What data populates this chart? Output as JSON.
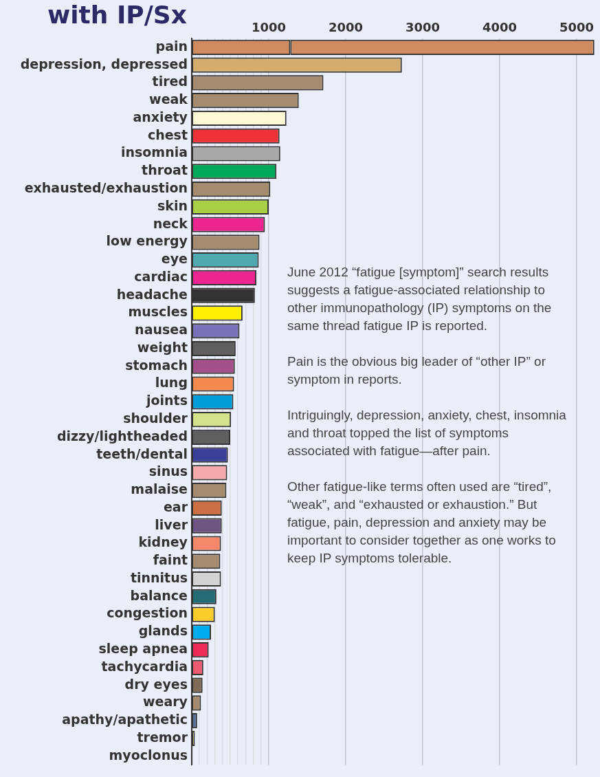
{
  "chart_data": {
    "type": "bar",
    "orientation": "horizontal",
    "stacked": true,
    "title": "with IP/Sx",
    "categories": [
      "pain",
      "depression, depressed",
      "tired",
      "weak",
      "anxiety",
      "chest",
      "insomnia",
      "throat",
      "exhausted/exhaustion",
      "skin",
      "neck",
      "low energy",
      "eye",
      "cardiac",
      "headache",
      "muscles",
      "nausea",
      "weight",
      "stomach",
      "lung",
      "joints",
      "shoulder",
      "dizzy/lightheaded",
      "teeth/dental",
      "sinus",
      "malaise",
      "ear",
      "liver",
      "kidney",
      "faint",
      "tinnitus",
      "balance",
      "congestion",
      "glands",
      "sleep apnea",
      "tachycardia",
      "dry eyes",
      "weary",
      "apathy/apathetic",
      "tremor",
      "myoclonus"
    ],
    "series": [
      {
        "colors": [
          "#d08c60",
          "#d4ac6e",
          "#a68c6e",
          "#a68c6e",
          "#fdf8d4",
          "#ee3338",
          "#a7a9ac",
          "#00a859",
          "#a68c6e",
          "#a8cf45",
          "#ec2590",
          "#a68c6e",
          "#50a8b0",
          "#ec2590",
          "#333135",
          "#fef200",
          "#7873b8",
          "#5f5f5f",
          "#a24f8a",
          "#f58a4f",
          "#009ddb",
          "#d2e38b",
          "#5f5f5f",
          "#3b3f97",
          "#f6a9ab",
          "#a68c6e",
          "#cc6f44",
          "#6f5583",
          "#f5876a",
          "#a68c6e",
          "#d1d3d4",
          "#256b73",
          "#fdcd2b",
          "#00aeef",
          "#ed2a56",
          "#f05a71",
          "#7f6b58",
          "#a68c6e",
          "#5b7398",
          "#fff47a",
          "#333333"
        ],
        "values": [
          1280,
          2730,
          1710,
          1390,
          1230,
          1140,
          1150,
          1100,
          1020,
          1000,
          950,
          880,
          870,
          840,
          820,
          660,
          620,
          570,
          560,
          550,
          540,
          510,
          500,
          470,
          460,
          450,
          390,
          390,
          380,
          370,
          380,
          320,
          300,
          250,
          220,
          150,
          140,
          120,
          70,
          40,
          10
        ]
      },
      {
        "colors": [
          "#d08c60",
          "#d08c60",
          "#d08c60",
          "#d08c60",
          "#d08c60",
          "#d08c60",
          "#d08c60",
          "#d08c60",
          "#d08c60",
          "#d08c60",
          "#d08c60",
          "#d08c60",
          "#d08c60",
          "#d08c60",
          "#d08c60",
          "#d08c60",
          "#d08c60",
          "#d08c60",
          "#d08c60",
          "#d08c60",
          "#d08c60",
          "#d08c60",
          "#d08c60",
          "#d08c60",
          "#d08c60",
          "#d08c60",
          "#d08c60",
          "#d08c60",
          "#d08c60",
          "#d08c60",
          "#d08c60",
          "#d08c60",
          "#d08c60",
          "#d08c60",
          "#d08c60",
          "#d08c60",
          "#d08c60",
          "#d08c60",
          "#d08c60",
          "#d08c60",
          "#d08c60"
        ],
        "values": [
          3950,
          null,
          null,
          null,
          null,
          null,
          null,
          null,
          null,
          null,
          null,
          null,
          null,
          null,
          null,
          null,
          null,
          null,
          null,
          null,
          null,
          null,
          null,
          null,
          null,
          null,
          null,
          null,
          null,
          null,
          null,
          null,
          null,
          null,
          null,
          null,
          null,
          null,
          null,
          null,
          null
        ]
      }
    ],
    "xlim": [
      0,
      5250
    ],
    "xticks": [
      {
        "value": 100,
        "label": null
      },
      {
        "value": 200,
        "label": null
      },
      {
        "value": 300,
        "label": null
      },
      {
        "value": 400,
        "label": null
      },
      {
        "value": 500,
        "label": null
      },
      {
        "value": 600,
        "label": null
      },
      {
        "value": 700,
        "label": null
      },
      {
        "value": 800,
        "label": null
      },
      {
        "value": 900,
        "label": null
      },
      1000,
      2000,
      3000,
      4000,
      5000
    ],
    "grid": "x",
    "annotations": [
      "June 2012 “fatigue [symptom]” search results suggests a fatigue-associated relationship to other immunopathology (IP) symptoms on the same thread fatigue IP is reported.",
      "Pain is the obvious big leader of “other IP” or symptom in reports.",
      "Intriguingly, depression, anxiety, chest, insomnia and throat topped the list of symptoms associated with fatigue—after pain.",
      "Other fatigue-like terms often used are “tired”, “weak”, and “exhausted or exhaustion.” But fatigue, pain, depression and anxiety may be important to consider together as one works to keep IP symptoms tolerable."
    ]
  }
}
